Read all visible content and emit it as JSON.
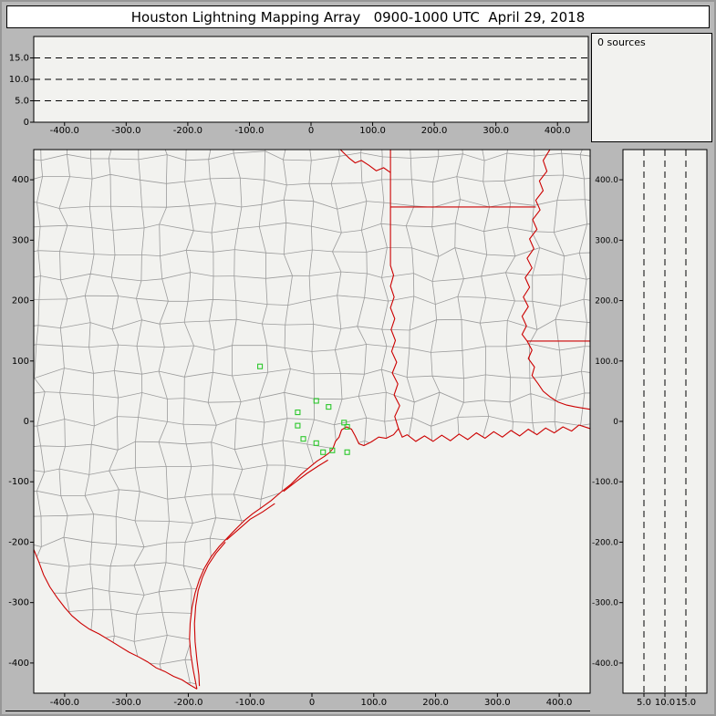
{
  "window": {
    "title": "Houston Lightning Mapping Array   0900-1000 UTC  April 29, 2018"
  },
  "sources_panel": {
    "label": "0 sources"
  },
  "colors": {
    "window_bg": "#b8b8b8",
    "panel_bg": "#f2f2ef",
    "border": "#000000",
    "dashed": "#000000",
    "county": "#9b9b9b",
    "state": "#cc0000",
    "station": "#2dc82d"
  },
  "chart_data": [
    {
      "id": "ew",
      "name": "altitude-vs-east-west",
      "type": "scatter",
      "title": "",
      "x_range": [
        -450,
        450
      ],
      "y_range": [
        0,
        20
      ],
      "x_ticks": [
        {
          "v": -400,
          "label": "-400.0"
        },
        {
          "v": -300,
          "label": "-300.0"
        },
        {
          "v": -200,
          "label": "-200.0"
        },
        {
          "v": -100,
          "label": "-100.0"
        },
        {
          "v": 0,
          "label": "0"
        },
        {
          "v": 100,
          "label": "100.0"
        },
        {
          "v": 200,
          "label": "200.0"
        },
        {
          "v": 300,
          "label": "300.0"
        },
        {
          "v": 400,
          "label": "400.0"
        }
      ],
      "y_ticks": [
        {
          "v": 15,
          "label": "15.0"
        },
        {
          "v": 10,
          "label": "10.0"
        },
        {
          "v": 5,
          "label": "5.0"
        },
        {
          "v": 0,
          "label": "0"
        }
      ],
      "dashed_y": [
        5,
        10,
        15
      ],
      "points": []
    },
    {
      "id": "plan",
      "name": "plan-view-map",
      "type": "scatter",
      "title": "",
      "x_range": [
        -450,
        450
      ],
      "y_range": [
        -450,
        450
      ],
      "x_ticks": [
        {
          "v": -400,
          "label": "-400.0"
        },
        {
          "v": -300,
          "label": "-300.0"
        },
        {
          "v": -200,
          "label": "-200.0"
        },
        {
          "v": -100,
          "label": "-100.0"
        },
        {
          "v": 0,
          "label": "0"
        },
        {
          "v": 100,
          "label": "100.0"
        },
        {
          "v": 200,
          "label": "200.0"
        },
        {
          "v": 300,
          "label": "300.0"
        },
        {
          "v": 400,
          "label": "400.0"
        }
      ],
      "y_ticks": [
        {
          "v": 400,
          "label": "400"
        },
        {
          "v": 300,
          "label": "300"
        },
        {
          "v": 200,
          "label": "200"
        },
        {
          "v": 100,
          "label": "100"
        },
        {
          "v": 0,
          "label": "0"
        },
        {
          "v": -100,
          "label": "-100"
        },
        {
          "v": -200,
          "label": "-200"
        },
        {
          "v": -300,
          "label": "-300"
        },
        {
          "v": -400,
          "label": "-400"
        }
      ],
      "points": [],
      "stations": [
        [
          -84,
          91
        ],
        [
          7,
          34
        ],
        [
          27,
          24
        ],
        [
          -23,
          15
        ],
        [
          -23,
          -7
        ],
        [
          -14,
          -29
        ],
        [
          7,
          -36
        ],
        [
          52,
          -2
        ],
        [
          57,
          -9
        ],
        [
          18,
          -51
        ],
        [
          33,
          -48
        ],
        [
          57,
          -51
        ]
      ],
      "geography": {
        "coastline": [
          [
            450,
            -12
          ],
          [
            432,
            -6
          ],
          [
            420,
            -16
          ],
          [
            406,
            -9
          ],
          [
            392,
            -19
          ],
          [
            378,
            -11
          ],
          [
            364,
            -22
          ],
          [
            350,
            -13
          ],
          [
            336,
            -24
          ],
          [
            322,
            -15
          ],
          [
            308,
            -26
          ],
          [
            294,
            -17
          ],
          [
            280,
            -28
          ],
          [
            266,
            -19
          ],
          [
            252,
            -30
          ],
          [
            238,
            -21
          ],
          [
            224,
            -32
          ],
          [
            210,
            -23
          ],
          [
            196,
            -33
          ],
          [
            182,
            -24
          ],
          [
            168,
            -33
          ],
          [
            154,
            -22
          ],
          [
            146,
            -26
          ],
          [
            140,
            -12
          ],
          [
            132,
            -22
          ],
          [
            120,
            -28
          ],
          [
            108,
            -26
          ],
          [
            96,
            -34
          ],
          [
            84,
            -40
          ],
          [
            76,
            -37
          ],
          [
            70,
            -24
          ],
          [
            64,
            -13
          ],
          [
            56,
            -9
          ],
          [
            48,
            -14
          ],
          [
            44,
            -26
          ],
          [
            38,
            -33
          ],
          [
            34,
            -45
          ],
          [
            28,
            -52
          ],
          [
            20,
            -58
          ],
          [
            8,
            -66
          ],
          [
            -4,
            -76
          ],
          [
            -18,
            -88
          ],
          [
            -34,
            -104
          ],
          [
            -50,
            -117
          ],
          [
            -66,
            -131
          ],
          [
            -82,
            -143
          ],
          [
            -96,
            -153
          ],
          [
            -108,
            -163
          ],
          [
            -122,
            -177
          ],
          [
            -136,
            -192
          ],
          [
            -150,
            -207
          ],
          [
            -163,
            -224
          ],
          [
            -174,
            -243
          ],
          [
            -182,
            -262
          ],
          [
            -189,
            -284
          ],
          [
            -194,
            -308
          ],
          [
            -197,
            -334
          ],
          [
            -198,
            -360
          ],
          [
            -196,
            -386
          ],
          [
            -192,
            -412
          ],
          [
            -186,
            -443
          ]
        ],
        "rio_grande": [
          [
            -186,
            -443
          ],
          [
            -198,
            -436
          ],
          [
            -210,
            -428
          ],
          [
            -224,
            -422
          ],
          [
            -238,
            -414
          ],
          [
            -252,
            -408
          ],
          [
            -266,
            -398
          ],
          [
            -280,
            -390
          ],
          [
            -296,
            -382
          ],
          [
            -312,
            -372
          ],
          [
            -328,
            -362
          ],
          [
            -344,
            -352
          ],
          [
            -360,
            -344
          ],
          [
            -374,
            -334
          ],
          [
            -388,
            -322
          ],
          [
            -400,
            -308
          ],
          [
            -412,
            -292
          ],
          [
            -424,
            -274
          ],
          [
            -434,
            -254
          ],
          [
            -442,
            -232
          ],
          [
            -450,
            -212
          ]
        ],
        "barrier_islands": [
          [
            [
              -140,
              -200
            ],
            [
              -155,
              -218
            ],
            [
              -168,
              -238
            ],
            [
              -177,
              -258
            ],
            [
              -184,
              -280
            ],
            [
              -188,
              -305
            ],
            [
              -190,
              -335
            ],
            [
              -189,
              -365
            ],
            [
              -186,
              -395
            ],
            [
              -183,
              -420
            ],
            [
              -182,
              -438
            ]
          ],
          [
            [
              26,
              -64
            ],
            [
              10,
              -74
            ],
            [
              -8,
              -86
            ],
            [
              -26,
              -100
            ],
            [
              -46,
              -116
            ]
          ],
          [
            [
              -60,
              -136
            ],
            [
              -80,
              -150
            ],
            [
              -100,
              -162
            ],
            [
              -120,
              -180
            ],
            [
              -138,
              -196
            ]
          ]
        ],
        "state_borders": [
          [
            [
              140,
              -12
            ],
            [
              134,
              8
            ],
            [
              142,
              26
            ],
            [
              133,
              44
            ],
            [
              139,
              62
            ],
            [
              130,
              80
            ],
            [
              137,
              98
            ],
            [
              129,
              116
            ],
            [
              135,
              134
            ],
            [
              128,
              152
            ],
            [
              134,
              170
            ],
            [
              127,
              188
            ],
            [
              133,
              206
            ],
            [
              127,
              224
            ],
            [
              132,
              242
            ],
            [
              127,
              258
            ],
            [
              127,
              355
            ]
          ],
          [
            [
              127,
              355
            ],
            [
              362,
              355
            ]
          ],
          [
            [
              127,
              355
            ],
            [
              127,
              450
            ]
          ],
          [
            [
              127,
              412
            ],
            [
              116,
              420
            ],
            [
              104,
              415
            ],
            [
              92,
              424
            ],
            [
              80,
              432
            ],
            [
              70,
              428
            ],
            [
              60,
              436
            ],
            [
              52,
              444
            ],
            [
              46,
              450
            ]
          ],
          [
            [
              385,
              450
            ],
            [
              374,
              432
            ],
            [
              380,
              414
            ],
            [
              368,
              398
            ],
            [
              374,
              382
            ],
            [
              362,
              366
            ],
            [
              369,
              350
            ],
            [
              357,
              334
            ],
            [
              364,
              318
            ],
            [
              352,
              302
            ],
            [
              359,
              286
            ],
            [
              348,
              270
            ],
            [
              356,
              254
            ],
            [
              345,
              238
            ],
            [
              352,
              222
            ],
            [
              342,
              206
            ],
            [
              350,
              190
            ],
            [
              340,
              174
            ],
            [
              347,
              158
            ],
            [
              340,
              144
            ],
            [
              348,
              133
            ]
          ],
          [
            [
              348,
              133
            ],
            [
              450,
              133
            ]
          ],
          [
            [
              348,
              133
            ],
            [
              356,
              118
            ],
            [
              350,
              104
            ],
            [
              360,
              90
            ],
            [
              356,
              76
            ],
            [
              366,
              62
            ],
            [
              374,
              50
            ],
            [
              386,
              40
            ],
            [
              398,
              32
            ],
            [
              412,
              27
            ],
            [
              426,
              24
            ],
            [
              438,
              22
            ],
            [
              450,
              20
            ]
          ]
        ]
      }
    },
    {
      "id": "ns",
      "name": "altitude-vs-north-south",
      "type": "scatter",
      "title": "",
      "x_range": [
        0,
        20
      ],
      "y_range": [
        -450,
        450
      ],
      "x_ticks": [
        {
          "v": 5,
          "label": "5.0"
        },
        {
          "v": 10,
          "label": "10.0"
        },
        {
          "v": 15,
          "label": "15.0"
        }
      ],
      "y_ticks": [
        {
          "v": 400,
          "label": "400.0"
        },
        {
          "v": 300,
          "label": "300.0"
        },
        {
          "v": 200,
          "label": "200.0"
        },
        {
          "v": 100,
          "label": "100.0"
        },
        {
          "v": 0,
          "label": "0"
        },
        {
          "v": -100,
          "label": "-100.0"
        },
        {
          "v": -200,
          "label": "-200.0"
        },
        {
          "v": -300,
          "label": "-300.0"
        },
        {
          "v": -400,
          "label": "-400.0"
        }
      ],
      "dashed_x": [
        5,
        10,
        15
      ],
      "points": []
    }
  ]
}
